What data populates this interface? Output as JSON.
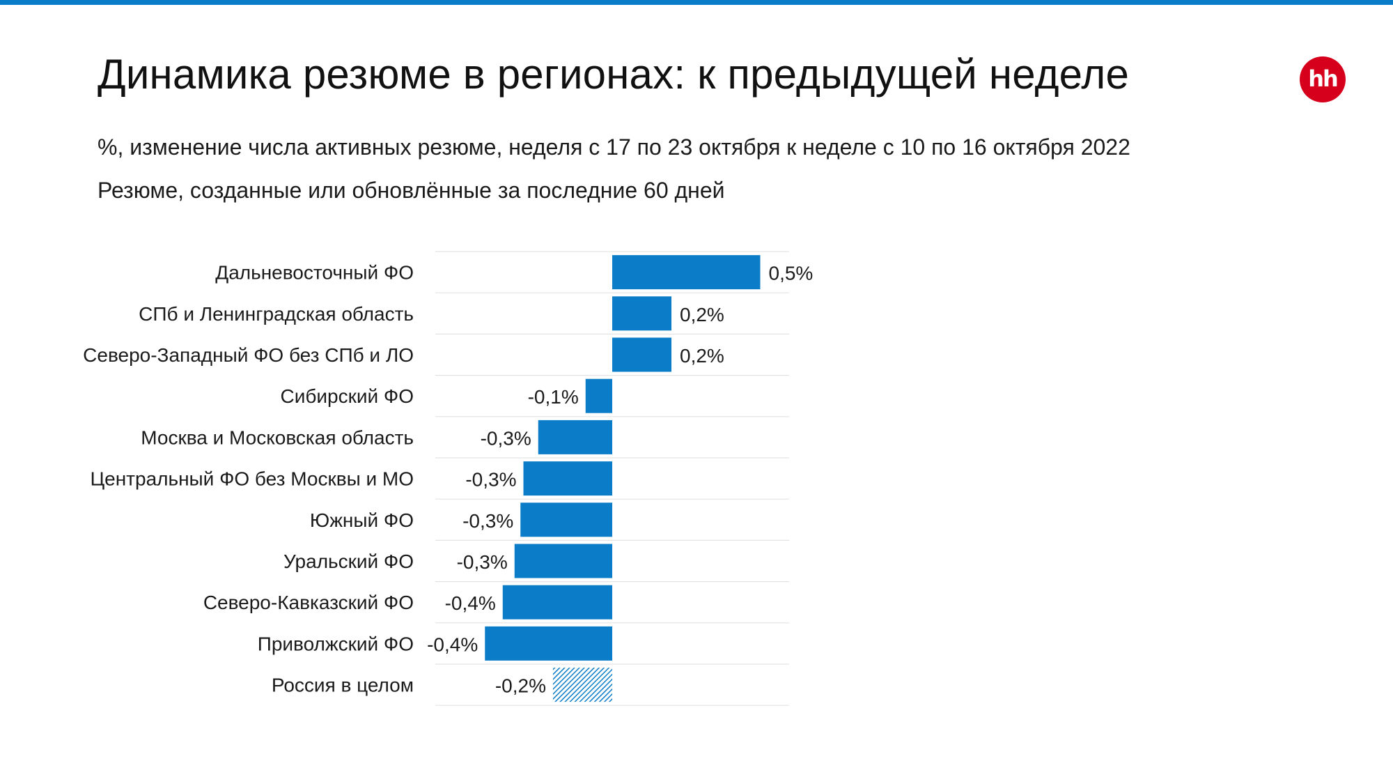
{
  "header": {
    "title": "Динамика резюме в регионах: к предыдущей неделе",
    "subtitle": "%, изменение числа активных резюме, неделя с 17 по 23 октября к неделе с 10 по 16 октября 2022",
    "note": "Резюме, созданные или обновлённые за последние 60 дней"
  },
  "logo": {
    "text": "hh",
    "color": "#d6001c"
  },
  "colors": {
    "accent": "#0a7cc8",
    "bar": "#0a7cc8",
    "grid": "#e3e3e3"
  },
  "chart_data": {
    "type": "bar",
    "orientation": "horizontal",
    "categories": [
      "Дальневосточный ФО",
      "СПб и Ленинградская область",
      "Северо-Западный ФО без СПб и ЛО",
      "Сибирский ФО",
      "Москва и Московская область",
      "Центральный ФО без Москвы и МО",
      "Южный ФО",
      "Уральский ФО",
      "Северо-Кавказский ФО",
      "Приволжский ФО",
      "Россия в целом"
    ],
    "values": [
      0.5,
      0.2,
      0.2,
      -0.09,
      -0.25,
      -0.3,
      -0.31,
      -0.33,
      -0.37,
      -0.43,
      -0.2
    ],
    "labels": [
      "0,5%",
      "0,2%",
      "0,2%",
      "-0,1%",
      "-0,3%",
      "-0,3%",
      "-0,3%",
      "-0,3%",
      "-0,4%",
      "-0,4%",
      "-0,2%"
    ],
    "highlight": [
      false,
      false,
      false,
      false,
      false,
      false,
      false,
      false,
      false,
      false,
      true
    ],
    "highlight_style": "hatched",
    "xlim": [
      -0.6,
      0.6
    ],
    "grid": "horizontal row separators",
    "legend": "none",
    "title": "",
    "xlabel": "",
    "ylabel": ""
  }
}
